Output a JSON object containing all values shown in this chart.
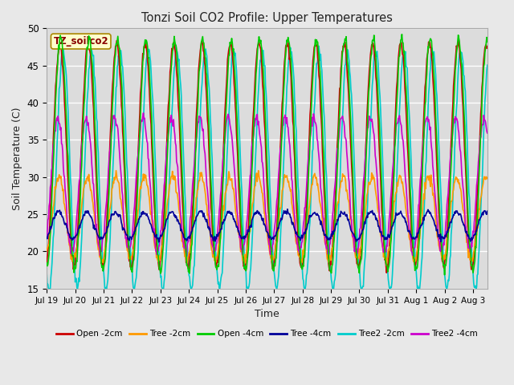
{
  "title": "Tonzi Soil CO2 Profile: Upper Temperatures",
  "xlabel": "Time",
  "ylabel": "Soil Temperature (C)",
  "ylim": [
    15,
    50
  ],
  "yticks": [
    15,
    20,
    25,
    30,
    35,
    40,
    45,
    50
  ],
  "figure_bg": "#e8e8e8",
  "plot_bg": "#dcdcdc",
  "legend_label": "TZ_soilco2",
  "series_order": [
    "Open -2cm",
    "Tree -2cm",
    "Open -4cm",
    "Tree -4cm",
    "Tree2 -2cm",
    "Tree2 -4cm"
  ],
  "series": {
    "Open -2cm": {
      "color": "#cc0000",
      "lw": 1.2
    },
    "Tree -2cm": {
      "color": "#ff9900",
      "lw": 1.2
    },
    "Open -4cm": {
      "color": "#00cc00",
      "lw": 1.2
    },
    "Tree -4cm": {
      "color": "#000099",
      "lw": 1.2
    },
    "Tree2 -2cm": {
      "color": "#00cccc",
      "lw": 1.2
    },
    "Tree2 -4cm": {
      "color": "#cc00cc",
      "lw": 1.2
    }
  },
  "tick_labels": [
    "Jul 19",
    "Jul 20",
    "Jul 21",
    "Jul 22",
    "Jul 23",
    "Jul 24",
    "Jul 25",
    "Jul 26",
    "Jul 27",
    "Jul 28",
    "Jul 29",
    "Jul 30",
    "Jul 31",
    "Aug 1",
    "Aug 2",
    "Aug 3"
  ],
  "n_days": 15.5,
  "ppd": 48,
  "open2_base": 33,
  "open2_amp": 15,
  "open2_phase": 0.25,
  "tree2_base": 24.5,
  "tree2_amp": 5.5,
  "tree2_phase": 0.4,
  "open4_base": 33,
  "open4_amp": 15.5,
  "open4_phase": 0.05,
  "tree4_base": 23.5,
  "tree4_amp": 1.8,
  "tree4_phase": 0.5,
  "tree2_2_base": 31,
  "tree2_2_amp": 16,
  "tree2_2_phase": -0.5,
  "tree2_4_base": 29,
  "tree2_4_amp": 9,
  "tree2_4_phase": 0.7
}
